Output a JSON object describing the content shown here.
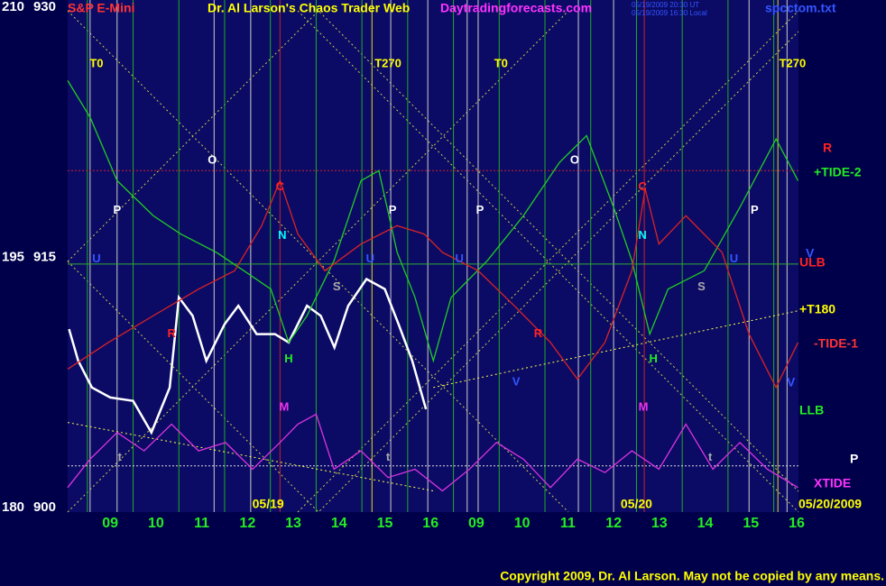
{
  "chart_data": {
    "type": "line",
    "header": {
      "symbol": "S&P E-Mini",
      "title": "Dr. Al Larson's Chaos Trader Web",
      "site": "Daytradingforecasts.com",
      "stamp1": "05/19/2009 20:30 UT",
      "stamp2": "05/19/2009 16:30 Local",
      "file": "spcctom.txt"
    },
    "copyright": "Copyright 2009, Dr. Al Larson. May not be copied by any means.",
    "xlim": [
      8.07,
      24.04
    ],
    "xticks": [
      {
        "value": 9,
        "label": "09"
      },
      10,
      11,
      12,
      13,
      14,
      15,
      16,
      {
        "value": 17,
        "label": "09"
      },
      {
        "value": 18,
        "label": "10"
      },
      {
        "value": 19,
        "label": "11"
      },
      {
        "value": 20,
        "label": "12"
      },
      {
        "value": 21,
        "label": "13"
      },
      {
        "value": 22,
        "label": "14"
      },
      {
        "value": 23,
        "label": "15"
      },
      {
        "value": 24,
        "label": "16"
      }
    ],
    "ylim": [
      900,
      930
    ],
    "yticks": [
      900,
      915,
      930
    ],
    "y2lim": [
      180,
      210
    ],
    "y2ticks": [
      180,
      195,
      210
    ],
    "date_labels": [
      {
        "text": "05/19",
        "x": 12.45
      },
      {
        "text": "05/20",
        "x": 20.5
      }
    ],
    "end_date": "05/20/2009",
    "series": [
      {
        "color": "#ffffff",
        "x": [
          8.1,
          8.3,
          8.6,
          9.0,
          9.5,
          9.9,
          10.3,
          10.5,
          10.8,
          11.1,
          11.5,
          11.8,
          12.2,
          12.6,
          12.9,
          13.3,
          13.6,
          13.9,
          14.2,
          14.6,
          15.0,
          15.3,
          15.6,
          15.9
        ],
        "values": [
          910.7,
          908.8,
          907.2,
          906.6,
          906.4,
          904.5,
          907.2,
          912.6,
          911.5,
          908.8,
          911.0,
          912.1,
          910.4,
          910.4,
          909.9,
          912.1,
          911.5,
          909.6,
          912.1,
          913.7,
          913.1,
          911.0,
          908.8,
          905.9
        ]
      },
      {
        "name": "+TIDE-2",
        "color": "#22cc22",
        "x": [
          8.07,
          8.56,
          9.15,
          9.94,
          10.54,
          11.32,
          11.92,
          12.51,
          12.9,
          13.3,
          13.89,
          14.48,
          14.87,
          15.27,
          15.66,
          16.06,
          16.45,
          17.24,
          18.03,
          18.82,
          19.41,
          20.0,
          20.4,
          20.79,
          21.19,
          21.98,
          22.76,
          23.55,
          24.03
        ],
        "values": [
          925.6,
          923.4,
          919.6,
          917.5,
          916.4,
          915.3,
          914.2,
          913.1,
          909.9,
          911.5,
          914.8,
          919.6,
          920.2,
          915.3,
          912.6,
          908.8,
          912.6,
          914.8,
          917.5,
          920.7,
          922.3,
          918.0,
          914.8,
          910.4,
          913.1,
          914.2,
          918.0,
          922.1,
          919.6
        ]
      },
      {
        "name": "-TIDE-1",
        "color": "#dd2222",
        "x": [
          8.07,
          8.96,
          9.94,
          10.93,
          11.72,
          12.31,
          12.71,
          13.1,
          13.69,
          14.48,
          15.27,
          15.86,
          16.26,
          17.04,
          17.83,
          18.62,
          19.21,
          19.81,
          20.4,
          20.69,
          20.99,
          21.58,
          22.37,
          22.96,
          23.55,
          24.03
        ],
        "values": [
          908.3,
          909.9,
          911.5,
          913.1,
          914.2,
          916.9,
          919.6,
          916.4,
          914.2,
          915.8,
          916.9,
          916.4,
          915.3,
          914.2,
          912.1,
          909.9,
          907.7,
          909.9,
          914.2,
          919.1,
          915.8,
          917.5,
          915.3,
          910.4,
          907.2,
          909.9
        ]
      },
      {
        "name": "XTIDE",
        "color": "#dd33dd",
        "x": [
          8.07,
          8.56,
          9.15,
          9.74,
          10.34,
          10.93,
          11.52,
          12.11,
          12.71,
          13.1,
          13.5,
          13.89,
          14.48,
          15.07,
          15.66,
          16.26,
          16.85,
          17.44,
          18.03,
          18.62,
          19.21,
          19.81,
          20.4,
          20.99,
          21.58,
          22.17,
          22.76,
          23.36,
          24.03
        ],
        "values": [
          901.2,
          902.9,
          904.5,
          903.4,
          905.0,
          903.4,
          903.9,
          902.3,
          903.9,
          905.0,
          905.6,
          902.3,
          903.4,
          901.8,
          902.3,
          901.0,
          902.3,
          903.9,
          902.9,
          901.2,
          902.9,
          902.1,
          903.4,
          902.3,
          905.0,
          902.3,
          903.9,
          902.3,
          901.2
        ]
      }
    ],
    "levels": [
      {
        "value": 920.2,
        "color": "#cc2222"
      },
      {
        "value": 914.6,
        "color": "#33aa33"
      },
      {
        "value": 902.5,
        "color": "#dddddd"
      }
    ],
    "trendlines": [
      {
        "color": "#ffff44",
        "x": [
          16.06,
          24.03
        ],
        "y": [
          907.2,
          911.8
        ]
      },
      {
        "color": "#ffff44",
        "x": [
          8.07,
          16.06
        ],
        "y": [
          905.1,
          901.0
        ]
      }
    ],
    "vlines": [
      {
        "x": 8.5,
        "color": "#22aa22"
      },
      {
        "x": 9.5,
        "color": "#22aa22"
      },
      {
        "x": 10.5,
        "color": "#22aa22"
      },
      {
        "x": 11.5,
        "color": "#22aa22"
      },
      {
        "x": 12.5,
        "color": "#22aa22"
      },
      {
        "x": 13.5,
        "color": "#22aa22"
      },
      {
        "x": 14.5,
        "color": "#22aa22"
      },
      {
        "x": 15.5,
        "color": "#22aa22"
      },
      {
        "x": 16.5,
        "color": "#22aa22"
      },
      {
        "x": 17.5,
        "color": "#22aa22"
      },
      {
        "x": 18.5,
        "color": "#22aa22"
      },
      {
        "x": 19.5,
        "color": "#22aa22"
      },
      {
        "x": 20.5,
        "color": "#22aa22"
      },
      {
        "x": 21.5,
        "color": "#22aa22"
      },
      {
        "x": 22.5,
        "color": "#22aa22"
      },
      {
        "x": 23.5,
        "color": "#22aa22"
      },
      {
        "x": 8.56,
        "color": "#cccccc"
      },
      {
        "x": 9.15,
        "color": "#cccccc"
      },
      {
        "x": 11.27,
        "color": "#cccccc"
      },
      {
        "x": 12.07,
        "color": "#cccccc"
      },
      {
        "x": 15.13,
        "color": "#cccccc"
      },
      {
        "x": 15.94,
        "color": "#cccccc"
      },
      {
        "x": 16.8,
        "color": "#cccccc"
      },
      {
        "x": 17.04,
        "color": "#cccccc"
      },
      {
        "x": 19.23,
        "color": "#cccccc"
      },
      {
        "x": 20.0,
        "color": "#cccccc"
      },
      {
        "x": 22.96,
        "color": "#cccccc"
      },
      {
        "x": 23.79,
        "color": "#cccccc"
      },
      {
        "x": 12.71,
        "color": "#cc2222"
      },
      {
        "x": 20.67,
        "color": "#cc2222"
      },
      {
        "x": 14.72,
        "color": "#dddd22"
      },
      {
        "x": 23.59,
        "color": "#dddd22"
      }
    ],
    "annotations": [
      {
        "text": "T0",
        "x": 8.7,
        "y": 926.6
      },
      {
        "text": "T270",
        "x": 15.07,
        "y": 926.6
      },
      {
        "text": "T0",
        "x": 17.54,
        "y": 926.6
      },
      {
        "text": "T270",
        "x": 23.91,
        "y": 926.6
      },
      {
        "text": "O",
        "x": 11.23,
        "y": 920.8
      },
      {
        "text": "O",
        "x": 19.15,
        "y": 920.8
      },
      {
        "text": "P",
        "x": 9.15,
        "y": 917.8
      },
      {
        "text": "P",
        "x": 15.17,
        "y": 917.8
      },
      {
        "text": "P",
        "x": 17.08,
        "y": 917.8
      },
      {
        "text": "P",
        "x": 23.08,
        "y": 917.8
      },
      {
        "text": "C",
        "x": 12.71,
        "y": 919.2
      },
      {
        "text": "C",
        "x": 20.63,
        "y": 919.2
      },
      {
        "text": "N",
        "x": 12.76,
        "y": 916.3
      },
      {
        "text": "N",
        "x": 20.63,
        "y": 916.3
      },
      {
        "text": "U",
        "x": 8.7,
        "y": 914.9
      },
      {
        "text": "U",
        "x": 14.68,
        "y": 914.9
      },
      {
        "text": "U",
        "x": 16.63,
        "y": 914.9
      },
      {
        "text": "U",
        "x": 22.63,
        "y": 914.9
      },
      {
        "text": "S",
        "x": 13.95,
        "y": 913.2
      },
      {
        "text": "S",
        "x": 21.92,
        "y": 913.2
      },
      {
        "text": "R",
        "x": 10.34,
        "y": 910.4
      },
      {
        "text": "R",
        "x": 18.35,
        "y": 910.4
      },
      {
        "text": "H",
        "x": 12.9,
        "y": 908.9
      },
      {
        "text": "H",
        "x": 20.87,
        "y": 908.9
      },
      {
        "text": "V",
        "x": 17.87,
        "y": 907.5
      },
      {
        "text": "M",
        "x": 12.8,
        "y": 906.0
      },
      {
        "text": "M",
        "x": 20.65,
        "y": 906.0
      },
      {
        "text": "t",
        "x": 9.21,
        "y": 903.0
      },
      {
        "text": "t",
        "x": 15.07,
        "y": 903.0
      },
      {
        "text": "t",
        "x": 22.11,
        "y": 903.0
      }
    ],
    "annotation_colors": {
      "T0": "#ffff00",
      "T270": "#ffff00",
      "O": "#ffffff",
      "P": "#ffffff",
      "C": "#ff2222",
      "N": "#00ffff",
      "U": "#3355ff",
      "S": "#aaaaaa",
      "R": "#ff2222",
      "H": "#22ee22",
      "V": "#3355ff",
      "M": "#ee33ee",
      "t": "#aaaaaa"
    },
    "right_labels": [
      {
        "text": "R",
        "color": "#ff2222"
      },
      {
        "text": "V",
        "color": "#3355ff"
      },
      {
        "text": "ULB",
        "color": "#ff2222"
      },
      {
        "text": "+T180",
        "color": "#ffff00"
      },
      {
        "text": "V",
        "color": "#3355ff"
      },
      {
        "text": "LLB",
        "color": "#22ee22"
      },
      {
        "text": "P",
        "color": "#ffffff"
      }
    ]
  }
}
